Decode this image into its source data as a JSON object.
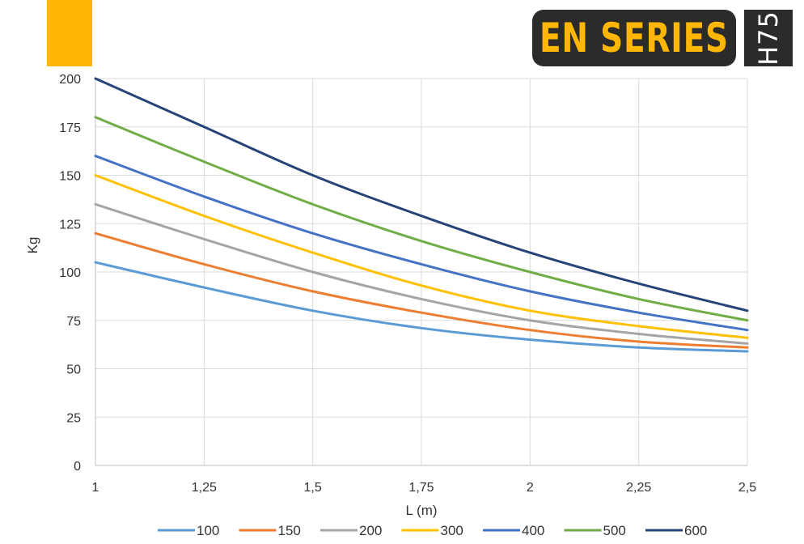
{
  "brand": {
    "series_label": "EN SERIES",
    "model_label": "H75",
    "accent": "#FFB703",
    "badge_bg": "#2b2b2b"
  },
  "chart_data": {
    "type": "line",
    "xlabel": "L (m)",
    "ylabel": "Kg",
    "xlim": [
      1,
      2.5
    ],
    "ylim": [
      0,
      200
    ],
    "x_ticks": [
      "1",
      "1,25",
      "1,5",
      "1,75",
      "2",
      "2,25",
      "2,5"
    ],
    "y_ticks": [
      "0",
      "25",
      "50",
      "75",
      "100",
      "125",
      "150",
      "175",
      "200"
    ],
    "grid": true,
    "legend": "bottom",
    "x": [
      1,
      1.25,
      1.5,
      1.75,
      2,
      2.25,
      2.5
    ],
    "series": [
      {
        "name": "100",
        "color": "#5B9BD5",
        "values": [
          105,
          92,
          80,
          71,
          65,
          61,
          59
        ]
      },
      {
        "name": "150",
        "color": "#ED7D31",
        "values": [
          120,
          104,
          90,
          79,
          70,
          64,
          61
        ]
      },
      {
        "name": "200",
        "color": "#A5A5A5",
        "values": [
          135,
          117,
          100,
          86,
          75,
          68,
          63
        ]
      },
      {
        "name": "300",
        "color": "#FFC000",
        "values": [
          150,
          129,
          110,
          93,
          80,
          72,
          66
        ]
      },
      {
        "name": "400",
        "color": "#4472C4",
        "values": [
          160,
          139,
          120,
          104,
          90,
          79,
          70
        ]
      },
      {
        "name": "500",
        "color": "#70AD47",
        "values": [
          180,
          157,
          135,
          116,
          100,
          86,
          75
        ]
      },
      {
        "name": "600",
        "color": "#264478",
        "values": [
          200,
          175,
          150,
          129,
          110,
          94,
          80
        ]
      }
    ]
  }
}
